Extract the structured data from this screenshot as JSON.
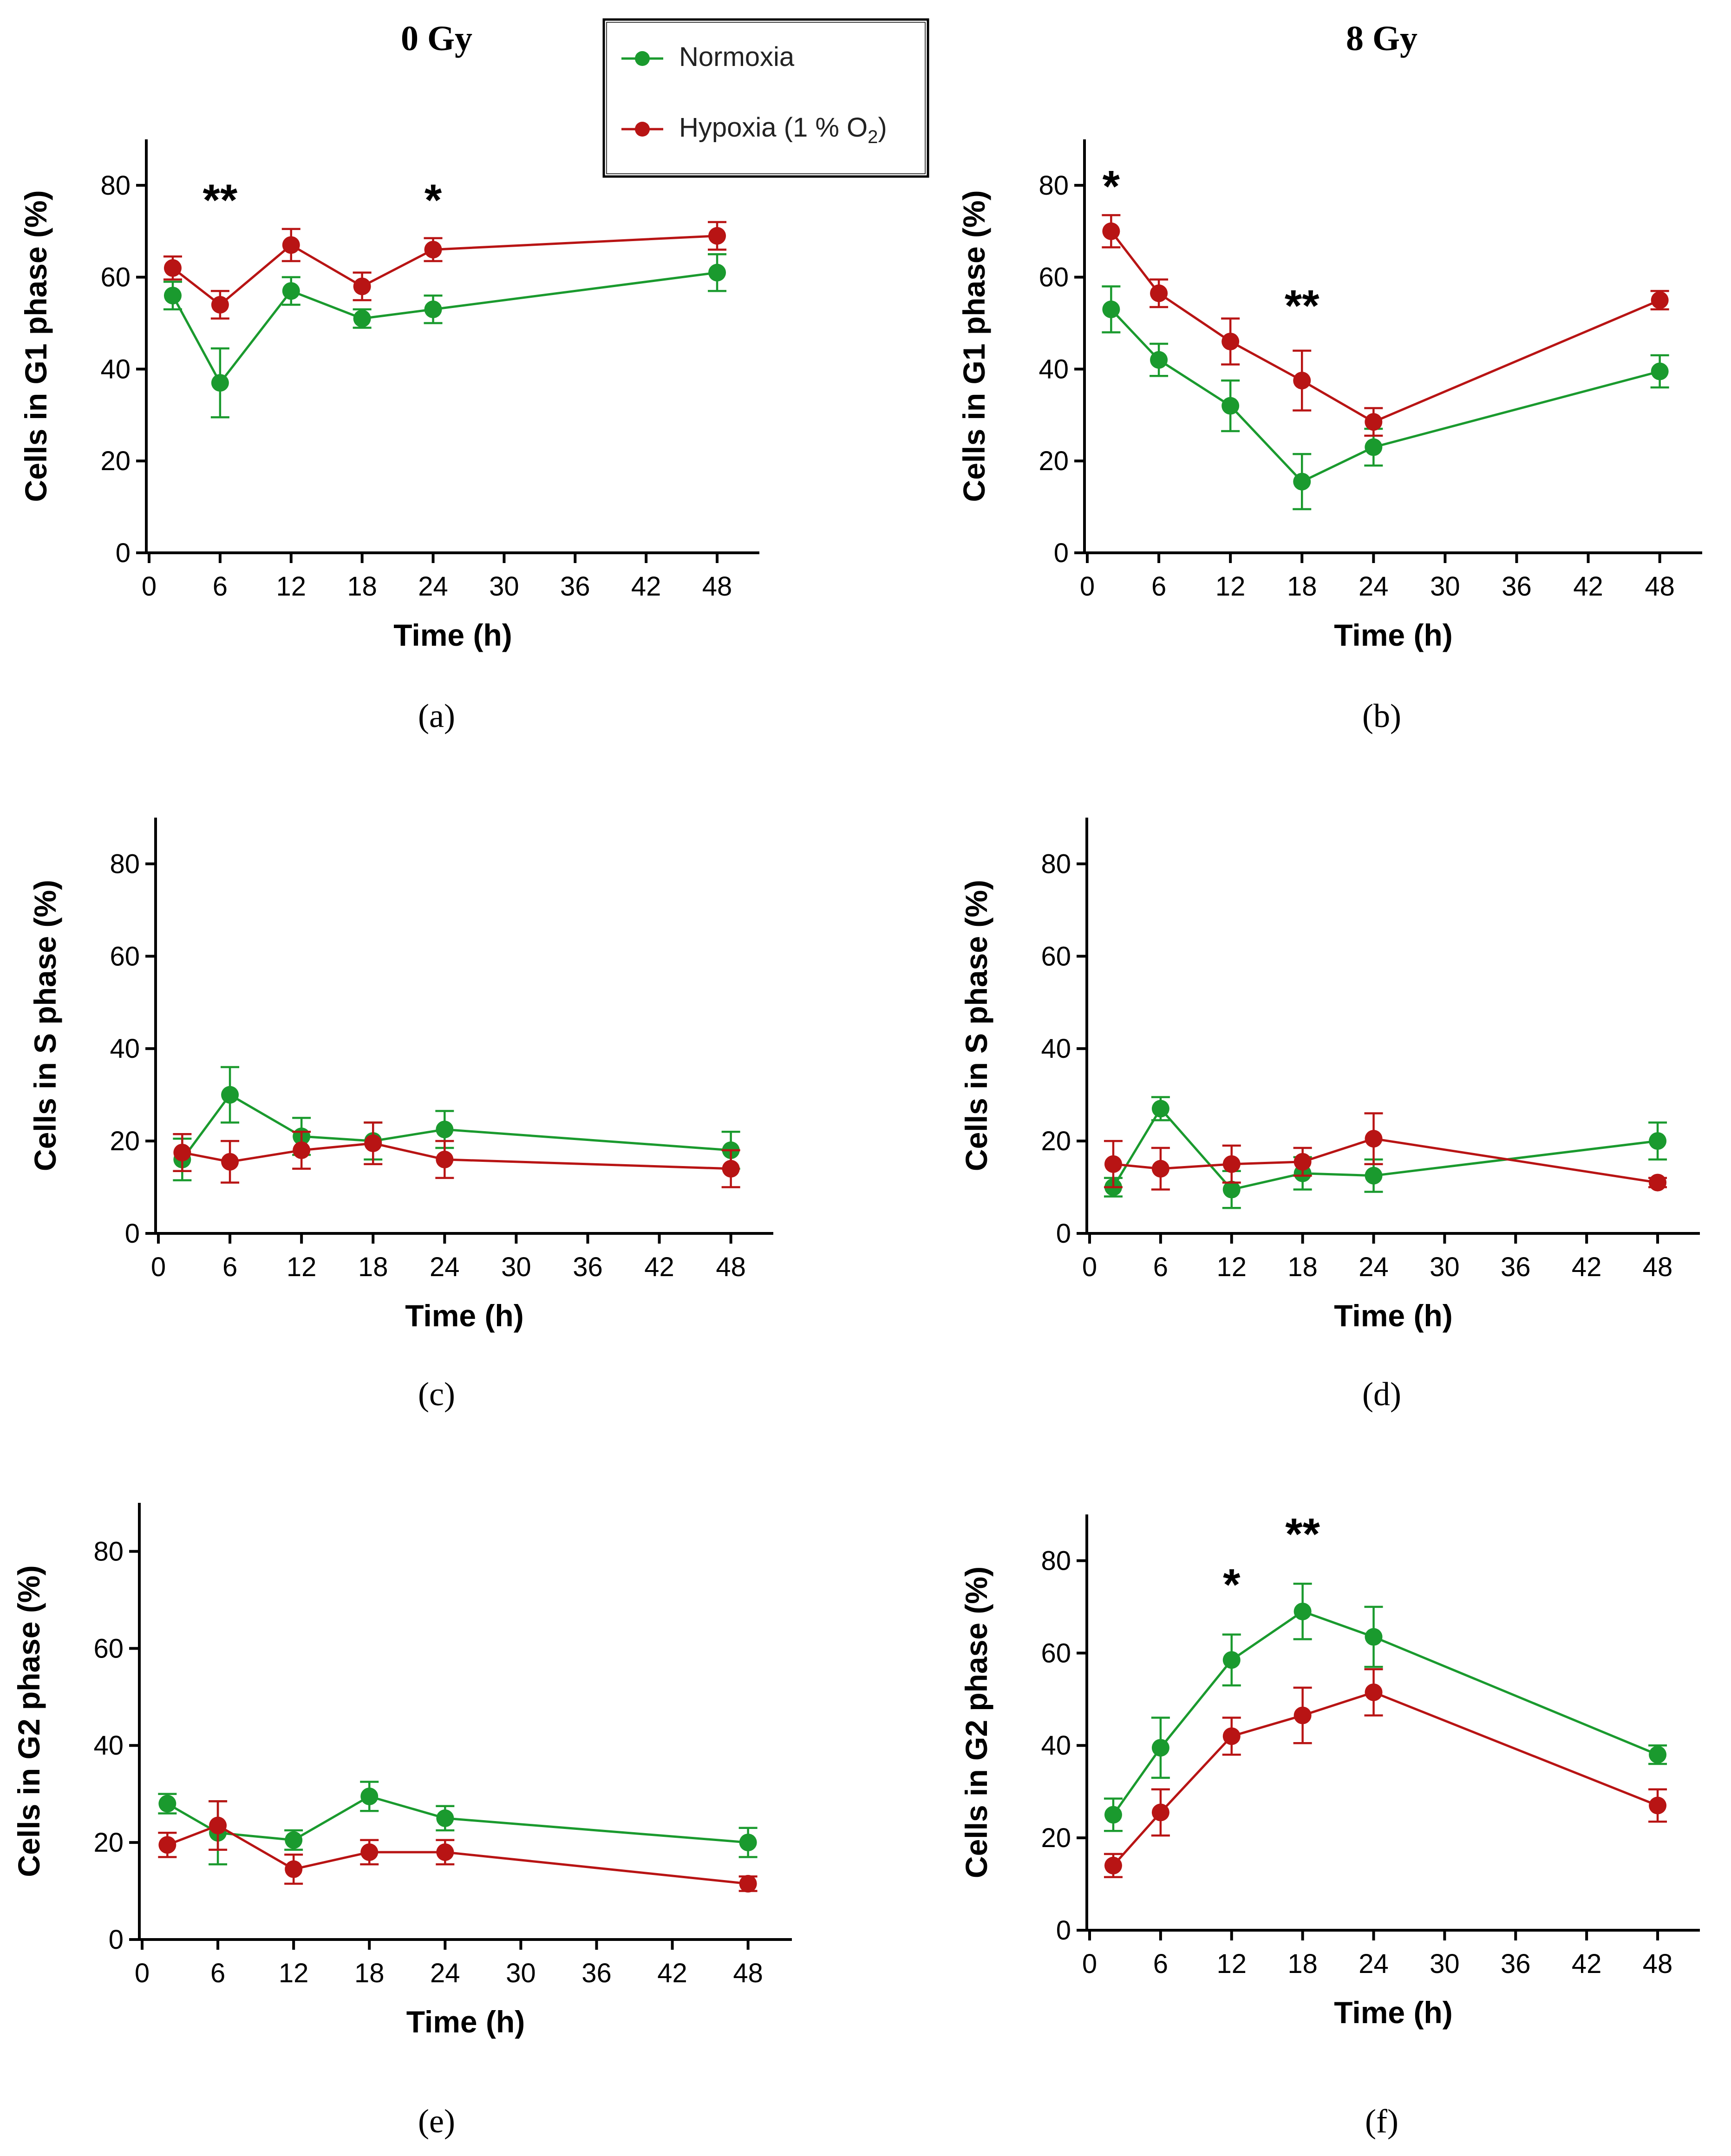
{
  "figure": {
    "column_titles": [
      "0 Gy",
      "8 Gy"
    ],
    "legend": {
      "entries": [
        {
          "label": "Normoxia",
          "series": "normoxia"
        },
        {
          "label": "Hypoxia (1 % O",
          "sub": "2",
          "suffix": ")",
          "series": "hypoxia"
        }
      ]
    },
    "colors": {
      "normoxia": "#1a9a2e",
      "hypoxia": "#b81414",
      "axis": "#000000"
    }
  },
  "chart_data": [
    {
      "id": "a",
      "panel_label": "(a)",
      "type": "line",
      "ylabel": "Cells in G1 phase (%)",
      "xlabel": "Time (h)",
      "xlim": [
        0,
        50
      ],
      "ylim": [
        0,
        90
      ],
      "xticks": [
        0,
        6,
        12,
        18,
        24,
        30,
        36,
        42,
        48
      ],
      "yticks": [
        0,
        20,
        40,
        60,
        80
      ],
      "x": [
        2,
        6,
        12,
        18,
        24,
        48
      ],
      "series": [
        {
          "name": "Normoxia",
          "values": [
            56,
            37,
            57,
            51,
            53,
            61
          ],
          "errors": [
            3,
            7.5,
            3,
            2,
            3,
            4
          ]
        },
        {
          "name": "Hypoxia (1 % O2)",
          "values": [
            62,
            54,
            67,
            58,
            66,
            69
          ],
          "errors": [
            2.5,
            3,
            3.5,
            3,
            2.5,
            3
          ]
        }
      ],
      "annotations": [
        {
          "text": "**",
          "x": 6,
          "y": 78
        },
        {
          "text": "*",
          "x": 24,
          "y": 78
        }
      ]
    },
    {
      "id": "b",
      "panel_label": "(b)",
      "type": "line",
      "ylabel": "Cells in G1 phase (%)",
      "xlabel": "Time (h)",
      "xlim": [
        0,
        50
      ],
      "ylim": [
        0,
        90
      ],
      "xticks": [
        0,
        6,
        12,
        18,
        24,
        30,
        36,
        42,
        48
      ],
      "yticks": [
        0,
        20,
        40,
        60,
        80
      ],
      "x": [
        2,
        6,
        12,
        18,
        24,
        48
      ],
      "series": [
        {
          "name": "Normoxia",
          "values": [
            53,
            42,
            32,
            15.5,
            23,
            39.5
          ],
          "errors": [
            5,
            3.5,
            5.5,
            6,
            4,
            3.5
          ]
        },
        {
          "name": "Hypoxia (1 % O2)",
          "values": [
            70,
            56.5,
            46,
            37.5,
            28.5,
            55
          ],
          "errors": [
            3.5,
            3,
            5,
            6.5,
            3,
            2
          ]
        }
      ],
      "annotations": [
        {
          "text": "*",
          "x": 2,
          "y": 81
        },
        {
          "text": "**",
          "x": 18,
          "y": 55
        }
      ]
    },
    {
      "id": "c",
      "panel_label": "(c)",
      "type": "line",
      "ylabel": "Cells in S phase (%)",
      "xlabel": "Time (h)",
      "xlim": [
        0,
        50
      ],
      "ylim": [
        0,
        90
      ],
      "xticks": [
        0,
        6,
        12,
        18,
        24,
        30,
        36,
        42,
        48
      ],
      "yticks": [
        0,
        20,
        40,
        60,
        80
      ],
      "x": [
        2,
        6,
        12,
        18,
        24,
        48
      ],
      "series": [
        {
          "name": "Normoxia",
          "values": [
            16,
            30,
            21,
            20,
            22.5,
            18
          ],
          "errors": [
            4.5,
            6,
            4,
            4,
            4,
            4
          ]
        },
        {
          "name": "Hypoxia (1 % O2)",
          "values": [
            17.5,
            15.5,
            18,
            19.5,
            16,
            14
          ],
          "errors": [
            4,
            4.5,
            4,
            4.5,
            4,
            4
          ]
        }
      ],
      "annotations": []
    },
    {
      "id": "d",
      "panel_label": "(d)",
      "type": "line",
      "ylabel": "Cells in S phase (%)",
      "xlabel": "Time (h)",
      "xlim": [
        0,
        50
      ],
      "ylim": [
        0,
        90
      ],
      "xticks": [
        0,
        6,
        12,
        18,
        24,
        30,
        36,
        42,
        48
      ],
      "yticks": [
        0,
        20,
        40,
        60,
        80
      ],
      "x": [
        2,
        6,
        12,
        18,
        24,
        48
      ],
      "series": [
        {
          "name": "Normoxia",
          "values": [
            10,
            27,
            9.5,
            13,
            12.5,
            20
          ],
          "errors": [
            2,
            2.5,
            4,
            3.5,
            3.5,
            4
          ]
        },
        {
          "name": "Hypoxia (1 % O2)",
          "values": [
            15,
            14,
            15,
            15.5,
            20.5,
            11
          ],
          "errors": [
            5,
            4.5,
            4,
            3,
            5.5,
            1
          ]
        }
      ],
      "annotations": []
    },
    {
      "id": "e",
      "panel_label": "(e)",
      "type": "line",
      "ylabel": "Cells in G2 phase (%)",
      "xlabel": "Time (h)",
      "xlim": [
        0,
        50
      ],
      "ylim": [
        0,
        90
      ],
      "xticks": [
        0,
        6,
        12,
        18,
        24,
        30,
        36,
        42,
        48
      ],
      "yticks": [
        0,
        20,
        40,
        60,
        80
      ],
      "x": [
        2,
        6,
        12,
        18,
        24,
        48
      ],
      "series": [
        {
          "name": "Normoxia",
          "values": [
            28,
            22,
            20.5,
            29.5,
            25,
            20
          ],
          "errors": [
            2,
            6.5,
            2,
            3,
            2.5,
            3
          ]
        },
        {
          "name": "Hypoxia (1 % O2)",
          "values": [
            19.5,
            23.5,
            14.5,
            18,
            18,
            11.5
          ],
          "errors": [
            2.5,
            5,
            3,
            2.5,
            2.5,
            1.5
          ]
        }
      ],
      "annotations": []
    },
    {
      "id": "f",
      "panel_label": "(f)",
      "type": "line",
      "ylabel": "Cells in G2 phase (%)",
      "xlabel": "Time (h)",
      "xlim": [
        0,
        50
      ],
      "ylim": [
        0,
        90
      ],
      "xticks": [
        0,
        6,
        12,
        18,
        24,
        30,
        36,
        42,
        48
      ],
      "yticks": [
        0,
        20,
        40,
        60,
        80
      ],
      "x": [
        2,
        6,
        12,
        18,
        24,
        48
      ],
      "series": [
        {
          "name": "Normoxia",
          "values": [
            25,
            39.5,
            58.5,
            69,
            63.5,
            38
          ],
          "errors": [
            3.5,
            6.5,
            5.5,
            6,
            6.5,
            2
          ]
        },
        {
          "name": "Hypoxia (1 % O2)",
          "values": [
            14,
            25.5,
            42,
            46.5,
            51.5,
            27
          ],
          "errors": [
            2.5,
            5,
            4,
            6,
            5,
            3.5
          ]
        }
      ],
      "annotations": [
        {
          "text": "*",
          "x": 12,
          "y": 76
        },
        {
          "text": "**",
          "x": 18,
          "y": 87
        }
      ]
    }
  ]
}
